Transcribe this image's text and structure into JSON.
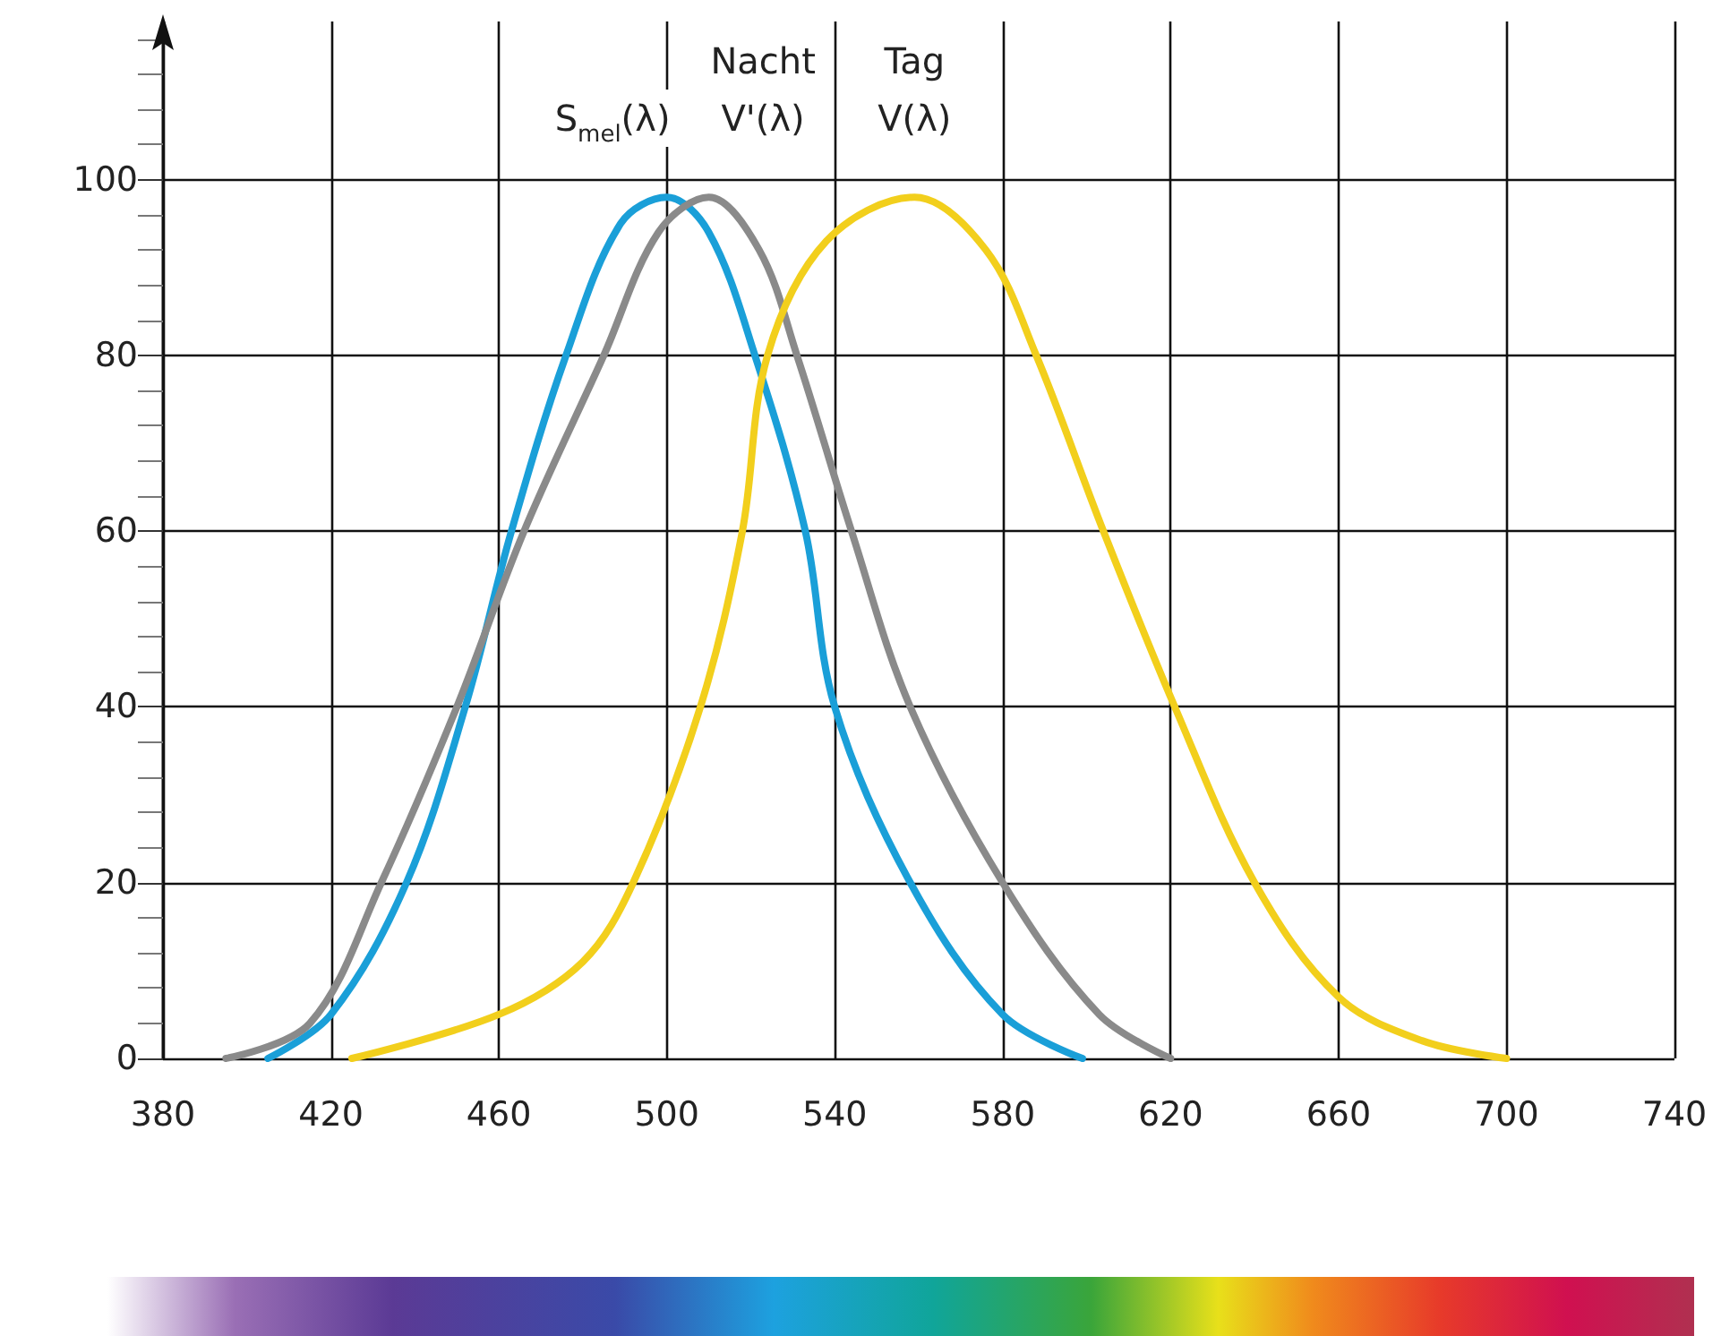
{
  "chart_data": {
    "type": "line",
    "xlim": [
      380,
      740
    ],
    "xticks": [
      380,
      420,
      460,
      500,
      540,
      580,
      620,
      660,
      700,
      740
    ],
    "ylim": [
      0,
      118
    ],
    "yticks": [
      0,
      20,
      40,
      60,
      80,
      100
    ],
    "grid": true,
    "legend": false,
    "marker": "none",
    "line_style": "solid",
    "series": [
      {
        "name": "S$_{mel}$(λ)",
        "color": "#1a9fd8",
        "x": [
          405,
          420,
          438,
          452,
          463,
          476,
          489,
          500,
          510,
          521,
          533,
          540,
          558,
          580,
          599
        ],
        "values": [
          0,
          5,
          20,
          40,
          60,
          80,
          95,
          98,
          94,
          80,
          60,
          40,
          20,
          5,
          0
        ]
      },
      {
        "name": "Nacht\nV'(λ)",
        "color": "#8a8a8a",
        "x": [
          395,
          415,
          432,
          450,
          466,
          485,
          498,
          510,
          522,
          531,
          544,
          558,
          580,
          603,
          620
        ],
        "values": [
          0,
          4,
          20,
          40,
          60,
          80,
          94,
          98,
          92,
          80,
          60,
          40,
          20,
          5,
          0
        ]
      },
      {
        "name": "Tag\nV(λ)",
        "color": "#f2cf1c",
        "x": [
          425,
          460,
          480,
          492,
          508,
          518,
          524,
          538,
          559,
          576,
          588,
          604,
          621,
          640,
          660,
          680,
          700
        ],
        "values": [
          0,
          5,
          11,
          20,
          40,
          60,
          80,
          93,
          98,
          92,
          80,
          60,
          40,
          20,
          7,
          2,
          0
        ]
      }
    ]
  }
}
